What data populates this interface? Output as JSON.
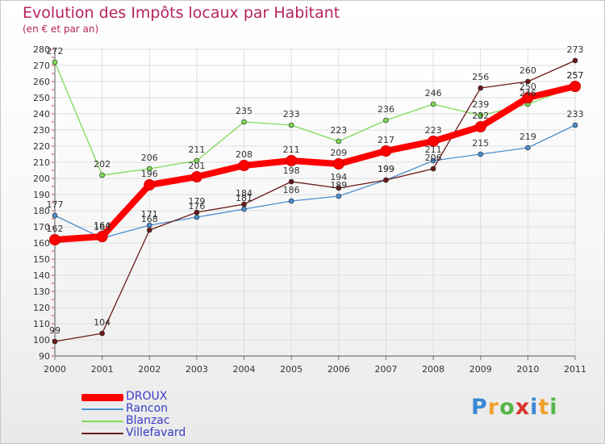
{
  "title": "Evolution des Impôts locaux par Habitant",
  "subtitle": "(en € et par an)",
  "logo": {
    "text": "Proxiti",
    "letters": [
      "P",
      "r",
      "o",
      "x",
      "i",
      "t",
      "i"
    ],
    "colors": [
      "#3b88d6",
      "#f0a12a",
      "#55b548",
      "#d9352c",
      "#3b88d6",
      "#f0a12a",
      "#55b548"
    ]
  },
  "chart_data": {
    "type": "line",
    "title": "Evolution des Impôts locaux par Habitant",
    "subtitle": "(en € et par an)",
    "xlabel": "",
    "ylabel": "",
    "x": [
      "2000",
      "2001",
      "2002",
      "2003",
      "2004",
      "2005",
      "2006",
      "2007",
      "2008",
      "2009",
      "2010",
      "2011"
    ],
    "ylim": [
      90,
      280
    ],
    "yticks": [
      90,
      100,
      110,
      120,
      130,
      140,
      150,
      160,
      170,
      180,
      190,
      200,
      210,
      220,
      230,
      240,
      250,
      260,
      270,
      280
    ],
    "grid": true,
    "legend_position": "bottom-left",
    "series": [
      {
        "name": "DROUX",
        "color": "#ff0000",
        "emphasis": true,
        "values": [
          162,
          164,
          196,
          201,
          208,
          211,
          209,
          217,
          223,
          232,
          250,
          257
        ],
        "labels": [
          "162",
          "164",
          "196",
          "201",
          "208",
          "211",
          "209",
          "217",
          "223",
          "232",
          "250",
          "257"
        ]
      },
      {
        "name": "Rancon",
        "color": "#4a8fcf",
        "values": [
          177,
          163,
          171,
          176,
          181,
          186,
          189,
          199,
          211,
          215,
          219,
          233
        ],
        "labels": [
          "177",
          "163",
          "171",
          "176",
          "181",
          "186",
          "189",
          "199",
          "211",
          "215",
          "219",
          "233"
        ]
      },
      {
        "name": "Blanzac",
        "color": "#7ed957",
        "values": [
          272,
          202,
          206,
          211,
          235,
          233,
          223,
          236,
          246,
          239,
          246,
          257
        ],
        "labels": [
          "272",
          "202",
          "206",
          "211",
          "235",
          "233",
          "223",
          "236",
          "246",
          "239",
          "246",
          "257"
        ]
      },
      {
        "name": "Villefavard",
        "color": "#6b1a1a",
        "values": [
          99,
          104,
          168,
          179,
          184,
          198,
          194,
          199,
          206,
          256,
          260,
          273
        ],
        "labels": [
          "99",
          "104",
          "168",
          "179",
          "184",
          "198",
          "194",
          "199",
          "206",
          "256",
          "260",
          "273"
        ]
      }
    ]
  }
}
